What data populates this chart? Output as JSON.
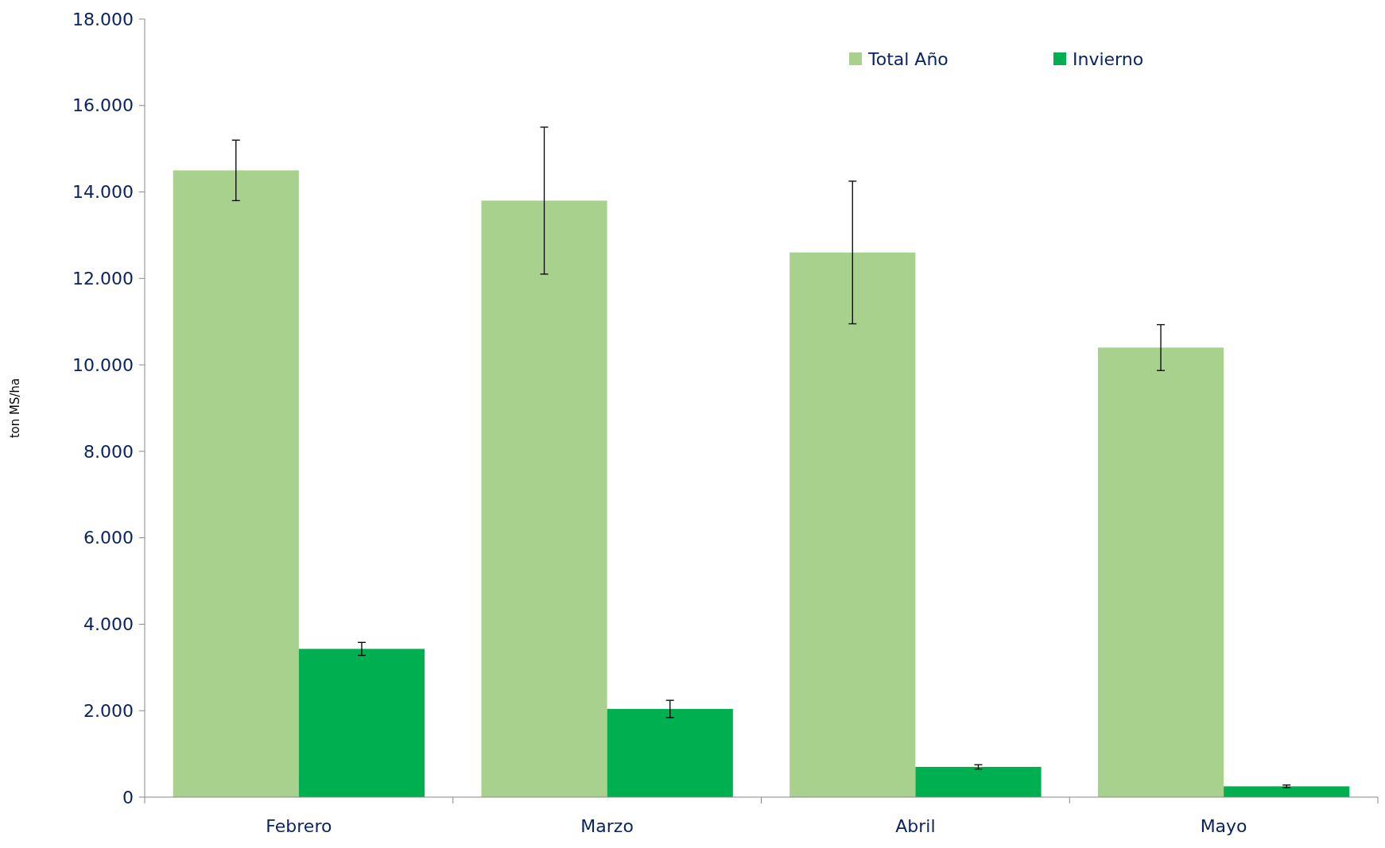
{
  "chart_data": {
    "type": "bar",
    "ylabel": "ton MS/ha",
    "categories": [
      "Febrero",
      "Marzo",
      "Abril",
      "Mayo"
    ],
    "series": [
      {
        "name": "Total Año",
        "color": "#a9d18e",
        "values": [
          14500,
          13800,
          12600,
          10400
        ],
        "errors": [
          700,
          1700,
          1650,
          530
        ]
      },
      {
        "name": "Invierno",
        "color": "#00b050",
        "values": [
          3430,
          2040,
          700,
          250
        ],
        "errors": [
          150,
          200,
          50,
          30
        ]
      }
    ],
    "ylim": [
      0,
      18000
    ],
    "yticks": [
      0,
      {
        "value": 2000,
        "label": "2.000"
      },
      {
        "value": 4000,
        "label": "4.000"
      },
      {
        "value": 6000,
        "label": "6.000"
      },
      {
        "value": 8000,
        "label": "8.000"
      },
      {
        "value": 10000,
        "label": "10.000"
      },
      {
        "value": 12000,
        "label": "12.000"
      },
      {
        "value": 14000,
        "label": "14.000"
      },
      {
        "value": 16000,
        "label": "16.000"
      },
      {
        "value": 18000,
        "label": "18.000"
      }
    ],
    "grid": false,
    "legend": "top right"
  }
}
